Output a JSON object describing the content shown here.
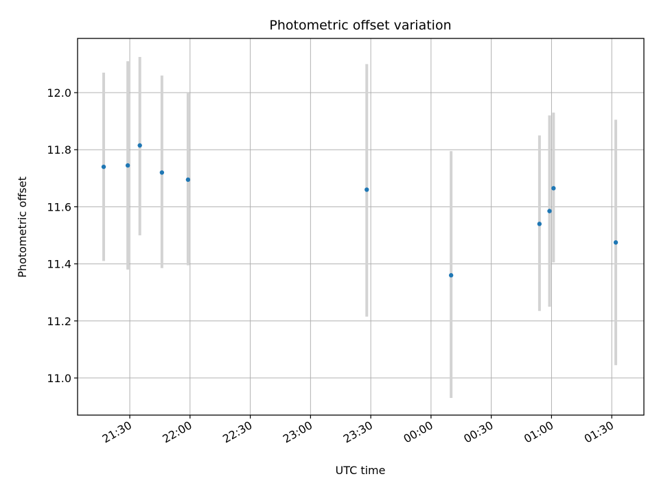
{
  "chart_data": {
    "type": "scatter",
    "title": "Photometric offset variation",
    "xlabel": "UTC time",
    "ylabel": "Photometric offset",
    "xlim": [
      "2024-01-01T21:04:00",
      "2024-01-02T01:46:00"
    ],
    "ylim": [
      10.87,
      12.19
    ],
    "grid": true,
    "x_ticks": [
      "2024-01-01T21:30:00",
      "2024-01-01T22:00:00",
      "2024-01-01T22:30:00",
      "2024-01-01T23:00:00",
      "2024-01-01T23:30:00",
      "2024-01-02T00:00:00",
      "2024-01-02T00:30:00",
      "2024-01-02T01:00:00",
      "2024-01-02T01:30:00"
    ],
    "x_tick_labels": [
      "21:30",
      "22:00",
      "22:30",
      "23:00",
      "23:30",
      "00:00",
      "00:30",
      "01:00",
      "01:30"
    ],
    "y_ticks": [
      11.0,
      11.2,
      11.4,
      11.6,
      11.8,
      12.0
    ],
    "y_tick_labels": [
      "11.0",
      "11.2",
      "11.4",
      "11.6",
      "11.8",
      "12.0"
    ],
    "colors": {
      "point": "#1f77b4",
      "errorbar": "#d3d3d3",
      "grid": "#b0b0b0"
    },
    "points": [
      {
        "x": "2024-01-01T21:17:00",
        "y": 11.74,
        "yerr_low": 11.41,
        "yerr_high": 12.07
      },
      {
        "x": "2024-01-01T21:29:00",
        "y": 11.745,
        "yerr_low": 11.38,
        "yerr_high": 12.11
      },
      {
        "x": "2024-01-01T21:35:00",
        "y": 11.815,
        "yerr_low": 11.5,
        "yerr_high": 12.125
      },
      {
        "x": "2024-01-01T21:46:00",
        "y": 11.72,
        "yerr_low": 11.385,
        "yerr_high": 12.06
      },
      {
        "x": "2024-01-01T21:59:00",
        "y": 11.695,
        "yerr_low": 11.395,
        "yerr_high": 12.0
      },
      {
        "x": "2024-01-01T23:28:00",
        "y": 11.66,
        "yerr_low": 11.215,
        "yerr_high": 12.1
      },
      {
        "x": "2024-01-02T00:10:00",
        "y": 11.36,
        "yerr_low": 10.93,
        "yerr_high": 11.795
      },
      {
        "x": "2024-01-02T00:54:00",
        "y": 11.54,
        "yerr_low": 11.235,
        "yerr_high": 11.85
      },
      {
        "x": "2024-01-02T00:59:00",
        "y": 11.585,
        "yerr_low": 11.25,
        "yerr_high": 11.92
      },
      {
        "x": "2024-01-02T01:01:00",
        "y": 11.665,
        "yerr_low": 11.405,
        "yerr_high": 11.93
      },
      {
        "x": "2024-01-02T01:32:00",
        "y": 11.475,
        "yerr_low": 11.045,
        "yerr_high": 11.905
      }
    ]
  }
}
